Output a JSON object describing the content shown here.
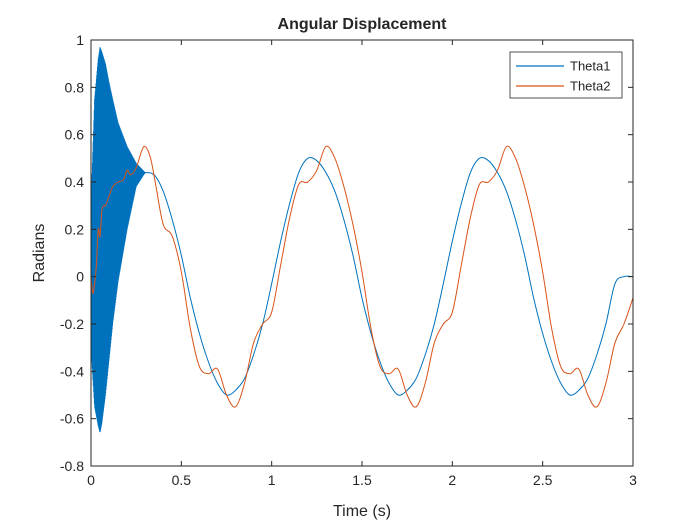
{
  "chart_data": {
    "type": "line",
    "title": "Angular Displacement",
    "xlabel": "Time (s)",
    "ylabel": "Radians",
    "xlim": [
      0,
      3
    ],
    "ylim": [
      -0.8,
      1
    ],
    "x_ticks": [
      "0",
      "0.5",
      "1",
      "1.5",
      "2",
      "2.5",
      "3"
    ],
    "y_ticks": [
      "-0.8",
      "-0.6",
      "-0.4",
      "-0.2",
      "0",
      "0.2",
      "0.4",
      "0.6",
      "0.8",
      "1"
    ],
    "grid": false,
    "legend_position": "top-right",
    "series": [
      {
        "name": "Theta1",
        "color": "#0072BD",
        "x": [
          0.3,
          0.35,
          0.4,
          0.45,
          0.5,
          0.55,
          0.6,
          0.65,
          0.7,
          0.75,
          0.8,
          0.85,
          0.9,
          0.95,
          1.0,
          1.05,
          1.1,
          1.15,
          1.2,
          1.25,
          1.3,
          1.35,
          1.4,
          1.45,
          1.5,
          1.55,
          1.6,
          1.65,
          1.7,
          1.75,
          1.8,
          1.85,
          1.9,
          1.95,
          2.0,
          2.05,
          2.1,
          2.15,
          2.2,
          2.25,
          2.3,
          2.35,
          2.4,
          2.45,
          2.5,
          2.55,
          2.6,
          2.65,
          2.7,
          2.75,
          2.8,
          2.85,
          2.9,
          2.95,
          3.0
        ],
        "values": [
          0.44,
          0.43,
          0.36,
          0.24,
          0.09,
          -0.09,
          -0.24,
          -0.36,
          -0.45,
          -0.5,
          -0.48,
          -0.43,
          -0.33,
          -0.2,
          -0.03,
          0.15,
          0.31,
          0.44,
          0.5,
          0.49,
          0.44,
          0.36,
          0.24,
          0.09,
          -0.09,
          -0.24,
          -0.36,
          -0.45,
          -0.5,
          -0.48,
          -0.43,
          -0.33,
          -0.2,
          -0.03,
          0.15,
          0.31,
          0.44,
          0.5,
          0.49,
          0.44,
          0.36,
          0.24,
          0.09,
          -0.09,
          -0.24,
          -0.36,
          -0.45,
          -0.5,
          -0.48,
          -0.43,
          -0.33,
          -0.2,
          -0.03,
          0.0,
          0.0
        ],
        "oscillation_band": {
          "x": [
            0.0,
            0.02,
            0.04,
            0.05,
            0.06,
            0.08,
            0.1,
            0.12,
            0.15,
            0.2,
            0.25,
            0.3
          ],
          "upper": [
            0.3,
            0.75,
            0.92,
            0.97,
            0.95,
            0.9,
            0.82,
            0.75,
            0.65,
            0.55,
            0.48,
            0.44
          ],
          "lower": [
            -0.3,
            -0.55,
            -0.63,
            -0.66,
            -0.62,
            -0.5,
            -0.35,
            -0.2,
            -0.02,
            0.2,
            0.38,
            0.44
          ]
        }
      },
      {
        "name": "Theta2",
        "color": "#D95319",
        "x": [
          0.0,
          0.01,
          0.02,
          0.03,
          0.04,
          0.05,
          0.06,
          0.07,
          0.08,
          0.1,
          0.12,
          0.15,
          0.18,
          0.2,
          0.22,
          0.25,
          0.28,
          0.3,
          0.33,
          0.36,
          0.4,
          0.45,
          0.5,
          0.55,
          0.6,
          0.65,
          0.7,
          0.75,
          0.8,
          0.85,
          0.9,
          0.95,
          1.0,
          1.05,
          1.1,
          1.15,
          1.2,
          1.25,
          1.3,
          1.35,
          1.4,
          1.45,
          1.5,
          1.55,
          1.6,
          1.65,
          1.7,
          1.75,
          1.8,
          1.85,
          1.9,
          1.95,
          2.0,
          2.05,
          2.1,
          2.15,
          2.2,
          2.25,
          2.3,
          2.35,
          2.4,
          2.45,
          2.5,
          2.55,
          2.6,
          2.65,
          2.7,
          2.75,
          2.8,
          2.85,
          2.9,
          2.95,
          3.0
        ],
        "values": [
          0.0,
          -0.07,
          -0.03,
          0.05,
          0.2,
          0.17,
          0.28,
          0.3,
          0.3,
          0.34,
          0.38,
          0.4,
          0.41,
          0.45,
          0.43,
          0.46,
          0.53,
          0.55,
          0.5,
          0.38,
          0.22,
          0.17,
          0.02,
          -0.22,
          -0.38,
          -0.41,
          -0.39,
          -0.5,
          -0.55,
          -0.45,
          -0.28,
          -0.2,
          -0.15,
          0.05,
          0.25,
          0.39,
          0.4,
          0.45,
          0.55,
          0.5,
          0.38,
          0.22,
          0.02,
          -0.22,
          -0.38,
          -0.41,
          -0.39,
          -0.5,
          -0.55,
          -0.45,
          -0.28,
          -0.2,
          -0.15,
          0.05,
          0.25,
          0.39,
          0.4,
          0.45,
          0.55,
          0.5,
          0.38,
          0.22,
          0.02,
          -0.22,
          -0.38,
          -0.41,
          -0.39,
          -0.5,
          -0.55,
          -0.45,
          -0.28,
          -0.2,
          -0.09
        ]
      }
    ]
  }
}
